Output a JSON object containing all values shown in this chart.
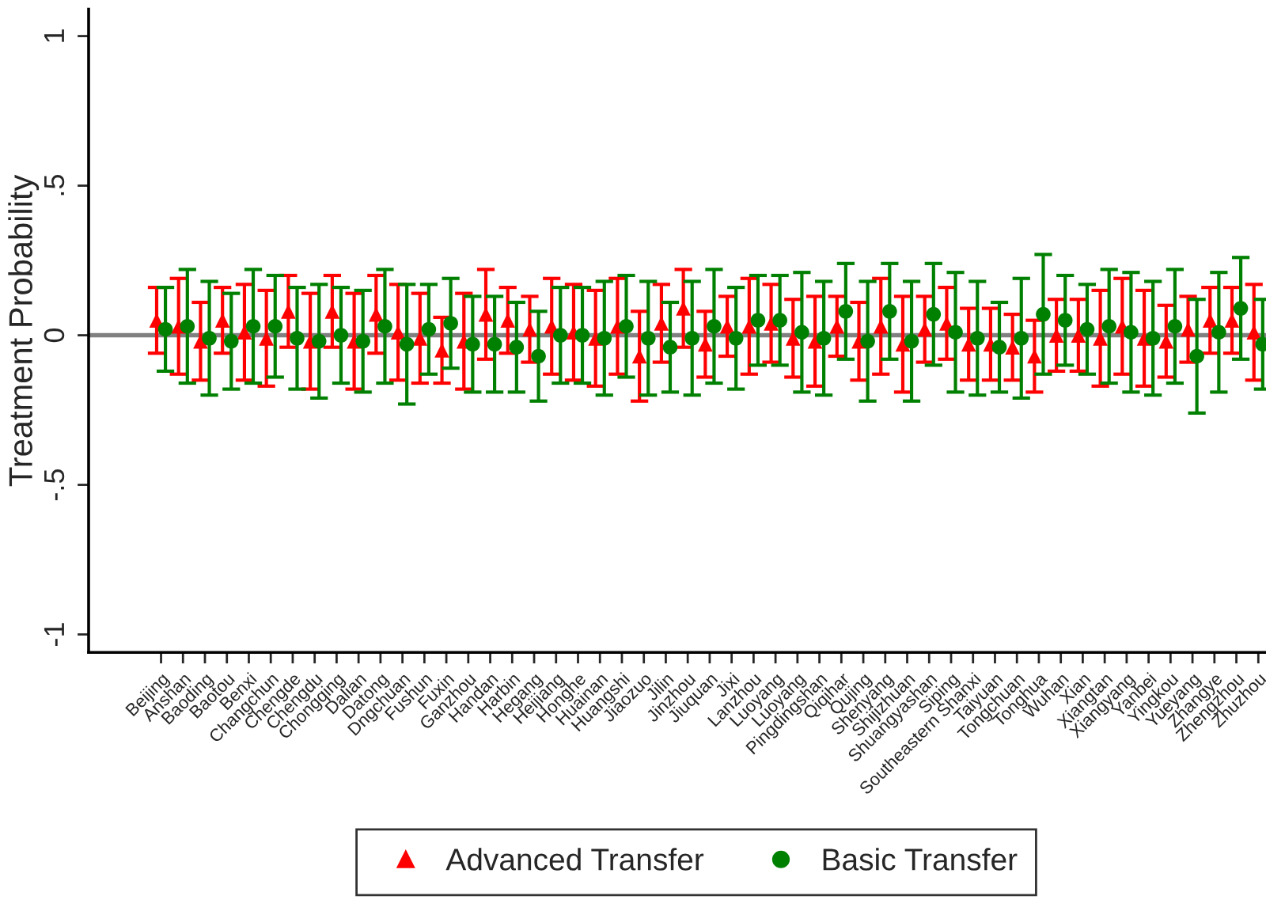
{
  "chart_data": {
    "type": "scatter",
    "ylabel": "Treatment Probability",
    "categories": [
      "Beijing",
      "Anshan",
      "Baoding",
      "Baotou",
      "Benxi",
      "Changchun",
      "Chengde",
      "Chengdu",
      "Chongqing",
      "Dalian",
      "Datong",
      "Dngchuan",
      "Fushun",
      "Fuxin",
      "Ganzhou",
      "Handan",
      "Harbin",
      "Hegang",
      "Heijiang",
      "Honghe",
      "Huainan",
      "Huangshi",
      "Jiaozuo",
      "Jilin",
      "Jinzhou",
      "Jiuquan",
      "Jixi",
      "Lanzhou",
      "Luoyang",
      "Luoyang",
      "Pingdingshan",
      "Qiqihar",
      "Qujing",
      "Shenyang",
      "Shijizhuan",
      "Shuangyashan",
      "Siping",
      "Southeastern Shanxi",
      "Taiyuan",
      "Tongchuan",
      "Tonghua",
      "Wuhan",
      "Xian",
      "Xiangtan",
      "Xiangyang",
      "Yanbei",
      "Yingkou",
      "Yueyang",
      "Zhangye",
      "Zhengzhou",
      "Zhuzhou"
    ],
    "series": [
      {
        "name": "Advanced Transfer",
        "color": "#ff0000",
        "marker": "triangle",
        "values": [
          0.05,
          0.03,
          -0.02,
          0.05,
          0.01,
          -0.01,
          0.08,
          -0.02,
          0.08,
          -0.02,
          0.07,
          0.01,
          -0.01,
          -0.05,
          -0.02,
          0.07,
          0.05,
          0.02,
          0.03,
          0.01,
          -0.01,
          0.03,
          -0.07,
          0.04,
          0.09,
          -0.03,
          0.03,
          0.03,
          0.04,
          -0.01,
          -0.02,
          0.03,
          -0.02,
          0.03,
          -0.03,
          0.02,
          0.04,
          -0.03,
          -0.03,
          -0.04,
          -0.07,
          0.0,
          0.0,
          -0.01,
          0.03,
          -0.01,
          -0.02,
          0.02,
          0.05,
          0.05,
          0.01
        ],
        "errors": [
          0.11,
          0.16,
          0.13,
          0.11,
          0.16,
          0.16,
          0.12,
          0.16,
          0.12,
          0.16,
          0.13,
          0.16,
          0.15,
          0.11,
          0.16,
          0.15,
          0.11,
          0.11,
          0.16,
          0.16,
          0.16,
          0.16,
          0.15,
          0.13,
          0.13,
          0.11,
          0.1,
          0.16,
          0.13,
          0.13,
          0.15,
          0.1,
          0.13,
          0.16,
          0.16,
          0.11,
          0.12,
          0.12,
          0.12,
          0.11,
          0.12,
          0.12,
          0.12,
          0.16,
          0.16,
          0.16,
          0.12,
          0.11,
          0.11,
          0.11,
          0.16
        ]
      },
      {
        "name": "Basic Transfer",
        "color": "#008000",
        "marker": "circle",
        "values": [
          0.02,
          0.03,
          -0.01,
          -0.02,
          0.03,
          0.03,
          -0.01,
          -0.02,
          0.0,
          -0.02,
          0.03,
          -0.03,
          0.02,
          0.04,
          -0.03,
          -0.03,
          -0.04,
          -0.07,
          0.0,
          0.0,
          -0.01,
          0.03,
          -0.01,
          -0.04,
          -0.01,
          0.03,
          -0.01,
          0.05,
          0.05,
          0.01,
          -0.01,
          0.08,
          -0.02,
          0.08,
          -0.02,
          0.07,
          0.01,
          -0.01,
          -0.04,
          -0.01,
          0.07,
          0.05,
          0.02,
          0.03,
          0.01,
          -0.01,
          0.03,
          -0.07,
          0.01,
          0.09,
          -0.03
        ],
        "errors": [
          0.14,
          0.19,
          0.19,
          0.16,
          0.19,
          0.17,
          0.17,
          0.19,
          0.16,
          0.17,
          0.19,
          0.2,
          0.15,
          0.15,
          0.16,
          0.16,
          0.15,
          0.15,
          0.16,
          0.16,
          0.19,
          0.17,
          0.19,
          0.15,
          0.19,
          0.19,
          0.17,
          0.15,
          0.15,
          0.2,
          0.19,
          0.16,
          0.2,
          0.16,
          0.2,
          0.17,
          0.2,
          0.19,
          0.15,
          0.2,
          0.2,
          0.15,
          0.15,
          0.19,
          0.2,
          0.19,
          0.19,
          0.19,
          0.2,
          0.17,
          0.15
        ]
      }
    ],
    "ylim": [
      -1.06,
      1.09
    ],
    "yticks": [
      -1,
      {
        "value": -0.5,
        "label": "-.5"
      },
      0,
      {
        "value": 0.5,
        "label": ".5"
      },
      1
    ],
    "ref_lines": [
      {
        "axis": "y",
        "value": 0,
        "color": "#808080"
      }
    ],
    "grid": false,
    "legend": "bottom"
  }
}
